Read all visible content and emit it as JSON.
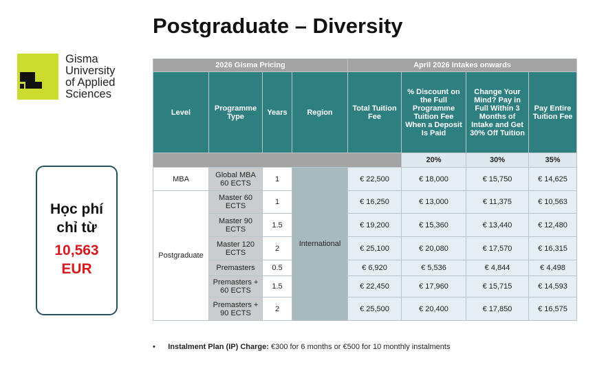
{
  "title": "Postgraduate – Diversity",
  "logo": {
    "lines": [
      "Gisma",
      "University",
      "of Applied",
      "Sciences"
    ]
  },
  "promo": {
    "lines": [
      "Học phí",
      "chỉ từ"
    ],
    "price_lines": [
      "10,563",
      "EUR"
    ]
  },
  "table": {
    "group_headers": [
      "2026 Gisma Pricing",
      "April 2026 Intakes onwards"
    ],
    "headers": [
      "Level",
      "Programme Type",
      "Years",
      "Region",
      "Total Tuition Fee",
      "% Discount on the Full Programme Tuition Fee When a Deposit Is Paid",
      "Change Your Mind? Pay in Full Within 3 Months of Intake and Get 30% Off Tuition",
      "Pay Entire Tuition Fee"
    ],
    "discounts": [
      "20%",
      "30%",
      "35%"
    ],
    "region": "International",
    "groups": [
      {
        "level": "MBA",
        "rows": [
          [
            "Global MBA 60 ECTS",
            "1",
            "€ 22,500",
            "€ 18,000",
            "€ 15,750",
            "€ 14,625"
          ]
        ]
      },
      {
        "level": "Postgraduate",
        "rows": [
          [
            "Master 60 ECTS",
            "1",
            "€ 16,250",
            "€ 13,000",
            "€ 11,375",
            "€ 10,563"
          ],
          [
            "Master 90 ECTS",
            "1.5",
            "€ 19,200",
            "€ 15,360",
            "€ 13,440",
            "€ 12,480"
          ],
          [
            "Master 120 ECTS",
            "2",
            "€ 25,100",
            "€ 20,080",
            "€ 17,570",
            "€ 16,315"
          ],
          [
            "Premasters",
            "0.5",
            "€ 6,920",
            "€ 5,536",
            "€ 4,844",
            "€ 4,498"
          ],
          [
            "Premasters + 60 ECTS",
            "1.5",
            "€ 22,450",
            "€ 17,960",
            "€ 15,715",
            "€ 14,593"
          ],
          [
            "Premasters + 90 ECTS",
            "2",
            "€ 25,500",
            "€ 20,400",
            "€ 17,850",
            "€ 16,575"
          ]
        ]
      }
    ]
  },
  "footnote": {
    "label": "Instalment Plan (IP) Charge:",
    "text": "€300 for 6 months or €500 for 10 monthly instalments"
  }
}
